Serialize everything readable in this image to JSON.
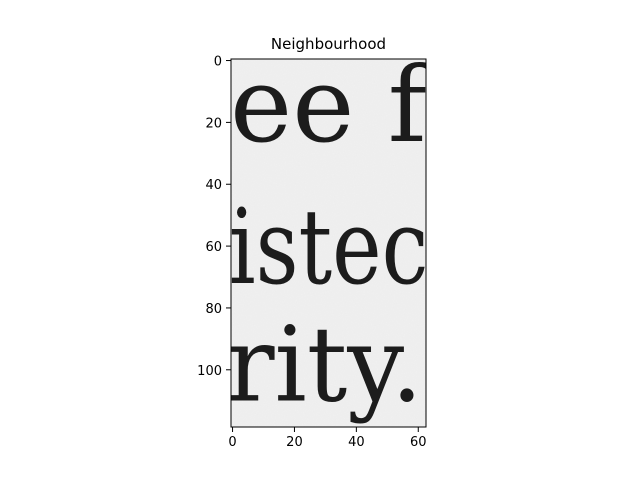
{
  "chart_data": {
    "type": "heatmap",
    "title": "Neighbourhood",
    "xlabel": "",
    "ylabel": "",
    "colormap": "gray",
    "grid": false,
    "image_width": 63,
    "image_height": 119,
    "xlim": [
      -0.5,
      62.5
    ],
    "ylim": [
      118.5,
      -0.5
    ],
    "x_ticks": [
      0,
      20,
      40,
      60
    ],
    "y_ticks": [
      0,
      20,
      40,
      60,
      80,
      100
    ],
    "text_lines": [
      {
        "text": "ee  f"
      },
      {
        "text": "istec"
      },
      {
        "text": "rity."
      }
    ],
    "colors": {
      "paper": "#f1f1f1",
      "ink": "#1c1c1c",
      "frame": "#000000"
    }
  }
}
